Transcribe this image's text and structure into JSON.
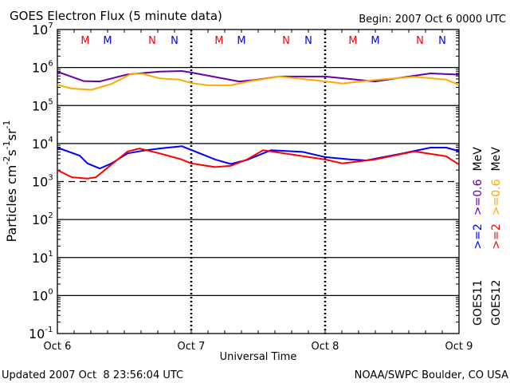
{
  "chart_data": {
    "type": "line",
    "title": "GOES Electron Flux (5 minute data)",
    "begin_label": "Begin: 2007 Oct 6 0000 UTC",
    "xlabel": "Universal Time",
    "ylabel": "Particles cm",
    "ylabel_parts": [
      "Particles cm",
      "-2",
      "s",
      "-1",
      "sr",
      "-1"
    ],
    "x_unit": "hours since 2007 Oct 6 0000 UTC",
    "xlim": [
      0,
      72
    ],
    "x_ticks": [
      {
        "value": 0,
        "label": "Oct 6"
      },
      {
        "value": 24,
        "label": "Oct 7"
      },
      {
        "value": 48,
        "label": "Oct 8"
      },
      {
        "value": 72,
        "label": "Oct 9"
      }
    ],
    "yscale": "log",
    "ylim": [
      0.1,
      10000000
    ],
    "y_ticks": [
      {
        "value": 10000000,
        "base": "10",
        "exp": "7"
      },
      {
        "value": 1000000,
        "base": "10",
        "exp": "6"
      },
      {
        "value": 100000,
        "base": "10",
        "exp": "5"
      },
      {
        "value": 10000,
        "base": "10",
        "exp": "4"
      },
      {
        "value": 1000,
        "base": "10",
        "exp": "3"
      },
      {
        "value": 100,
        "base": "10",
        "exp": "2"
      },
      {
        "value": 10,
        "base": "10",
        "exp": "1"
      },
      {
        "value": 1,
        "base": "10",
        "exp": "0"
      },
      {
        "value": 0.1,
        "base": "10",
        "exp": "-1"
      }
    ],
    "threshold": {
      "value": 1000,
      "style": "dashed"
    },
    "markers": [
      {
        "label": "M",
        "hour": 5,
        "color": "#ff0000"
      },
      {
        "label": "M",
        "hour": 9,
        "color": "#0000ff"
      },
      {
        "label": "N",
        "hour": 17,
        "color": "#ff0000"
      },
      {
        "label": "N",
        "hour": 21,
        "color": "#0000ff"
      },
      {
        "label": "M",
        "hour": 29,
        "color": "#ff0000"
      },
      {
        "label": "M",
        "hour": 33,
        "color": "#0000ff"
      },
      {
        "label": "N",
        "hour": 41,
        "color": "#ff0000"
      },
      {
        "label": "N",
        "hour": 45,
        "color": "#0000ff"
      },
      {
        "label": "M",
        "hour": 53,
        "color": "#ff0000"
      },
      {
        "label": "M",
        "hour": 57,
        "color": "#0000ff"
      },
      {
        "label": "N",
        "hour": 65,
        "color": "#ff0000"
      },
      {
        "label": "N",
        "hour": 69,
        "color": "#0000ff"
      }
    ],
    "series": [
      {
        "name": "GOES11 >=0.6 MeV",
        "color": "#6600aa",
        "x": [
          0,
          4.7,
          7.6,
          12.6,
          18.3,
          22.3,
          24,
          32.6,
          35.4,
          39.7,
          48,
          56.9,
          66.9,
          72
        ],
        "y": [
          780000,
          440000,
          430000,
          660000,
          780000,
          810000,
          740000,
          430000,
          470000,
          580000,
          580000,
          430000,
          700000,
          650000
        ]
      },
      {
        "name": "GOES12 >=0.6 MeV",
        "color": "#ffaa00",
        "x": [
          0,
          2.6,
          6.1,
          7.6,
          9.7,
          13.3,
          15.4,
          18.3,
          21.9,
          24,
          26.9,
          31.1,
          34.7,
          39.7,
          46.9,
          51.1,
          56.9,
          64,
          69.7,
          72
        ],
        "y": [
          350000,
          280000,
          260000,
          300000,
          370000,
          690000,
          680000,
          520000,
          480000,
          390000,
          340000,
          340000,
          440000,
          580000,
          450000,
          380000,
          470000,
          570000,
          480000,
          350000
        ]
      },
      {
        "name": "GOES11 >=2 MeV",
        "color": "#0000ff",
        "x": [
          0,
          4,
          5.4,
          7.6,
          9.7,
          12.6,
          15.4,
          18.3,
          22.3,
          24,
          28.3,
          31.1,
          34,
          38.3,
          44,
          48,
          52.6,
          55.4,
          61.1,
          66.9,
          69.7,
          72
        ],
        "y": [
          7800,
          4800,
          3000,
          2200,
          3000,
          5500,
          6500,
          7400,
          8500,
          6800,
          3800,
          2900,
          3700,
          6700,
          6000,
          4400,
          3800,
          3600,
          5200,
          7800,
          7800,
          6300
        ]
      },
      {
        "name": "GOES12 >=2 MeV",
        "color": "#ff0000",
        "x": [
          0,
          2.6,
          5.4,
          6.9,
          9.7,
          12.6,
          14.7,
          18.3,
          22.3,
          24,
          28.3,
          31.1,
          34,
          36.9,
          42.6,
          48,
          51.1,
          56.9,
          64,
          69.7,
          72
        ],
        "y": [
          2000,
          1300,
          1200,
          1300,
          2800,
          6200,
          7400,
          5500,
          3800,
          3000,
          2400,
          2600,
          3800,
          6700,
          5000,
          3800,
          3000,
          3800,
          6200,
          4600,
          2800
        ]
      }
    ],
    "legend": {
      "placement": "right-vertical",
      "columns": [
        {
          "satellite": "GOES11",
          "entries": [
            {
              "label": ">=2",
              "color": "#0000ff"
            },
            {
              "label": ">=0.6",
              "color": "#6600aa"
            }
          ],
          "unit": "MeV"
        },
        {
          "satellite": "GOES12",
          "entries": [
            {
              "label": ">=2",
              "color": "#ff0000"
            },
            {
              "label": ">=0.6",
              "color": "#ffaa00"
            }
          ],
          "unit": "MeV"
        }
      ]
    }
  },
  "footer": {
    "updated": "Updated 2007 Oct  8 23:56:04 UTC",
    "source": "NOAA/SWPC Boulder, CO USA"
  }
}
